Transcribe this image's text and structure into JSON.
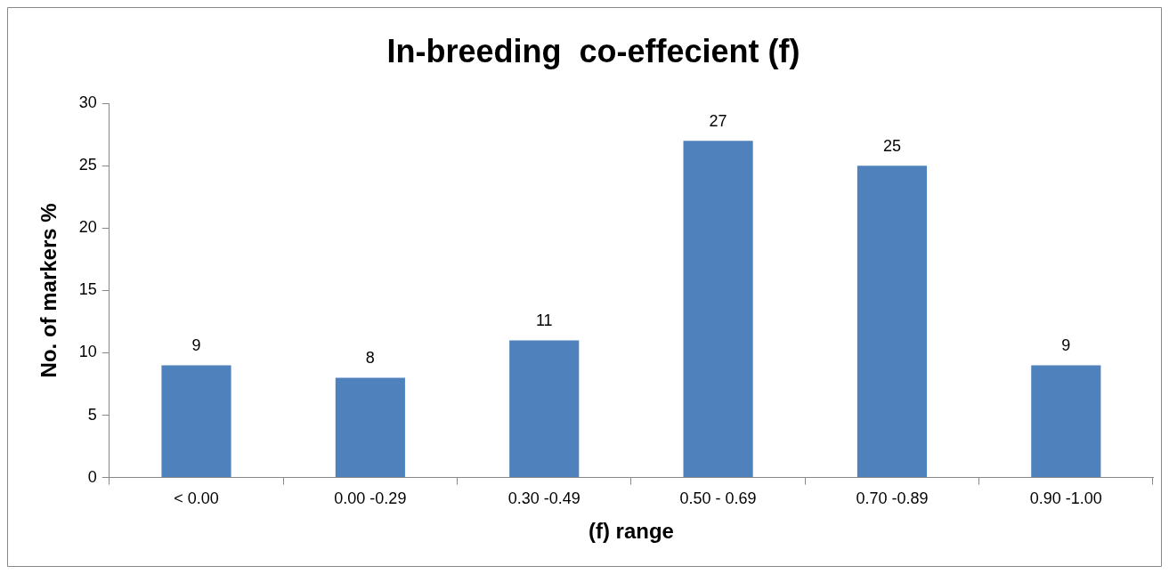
{
  "chart_data": {
    "type": "bar",
    "title": "In-breeding  co-effecient (f)",
    "xlabel": "(f) range",
    "ylabel": "No. of markers %",
    "categories": [
      "< 0.00",
      "0.00 -0.29",
      "0.30 -0.49",
      "0.50 - 0.69",
      "0.70 -0.89",
      "0.90 -1.00"
    ],
    "values": [
      9,
      8,
      11,
      27,
      25,
      9
    ],
    "color": "#4f81bd",
    "ylim": [
      0,
      30
    ],
    "yticks": [
      0,
      5,
      10,
      15,
      20,
      25,
      30
    ],
    "grid": false,
    "legend": false,
    "data_labels": true
  }
}
